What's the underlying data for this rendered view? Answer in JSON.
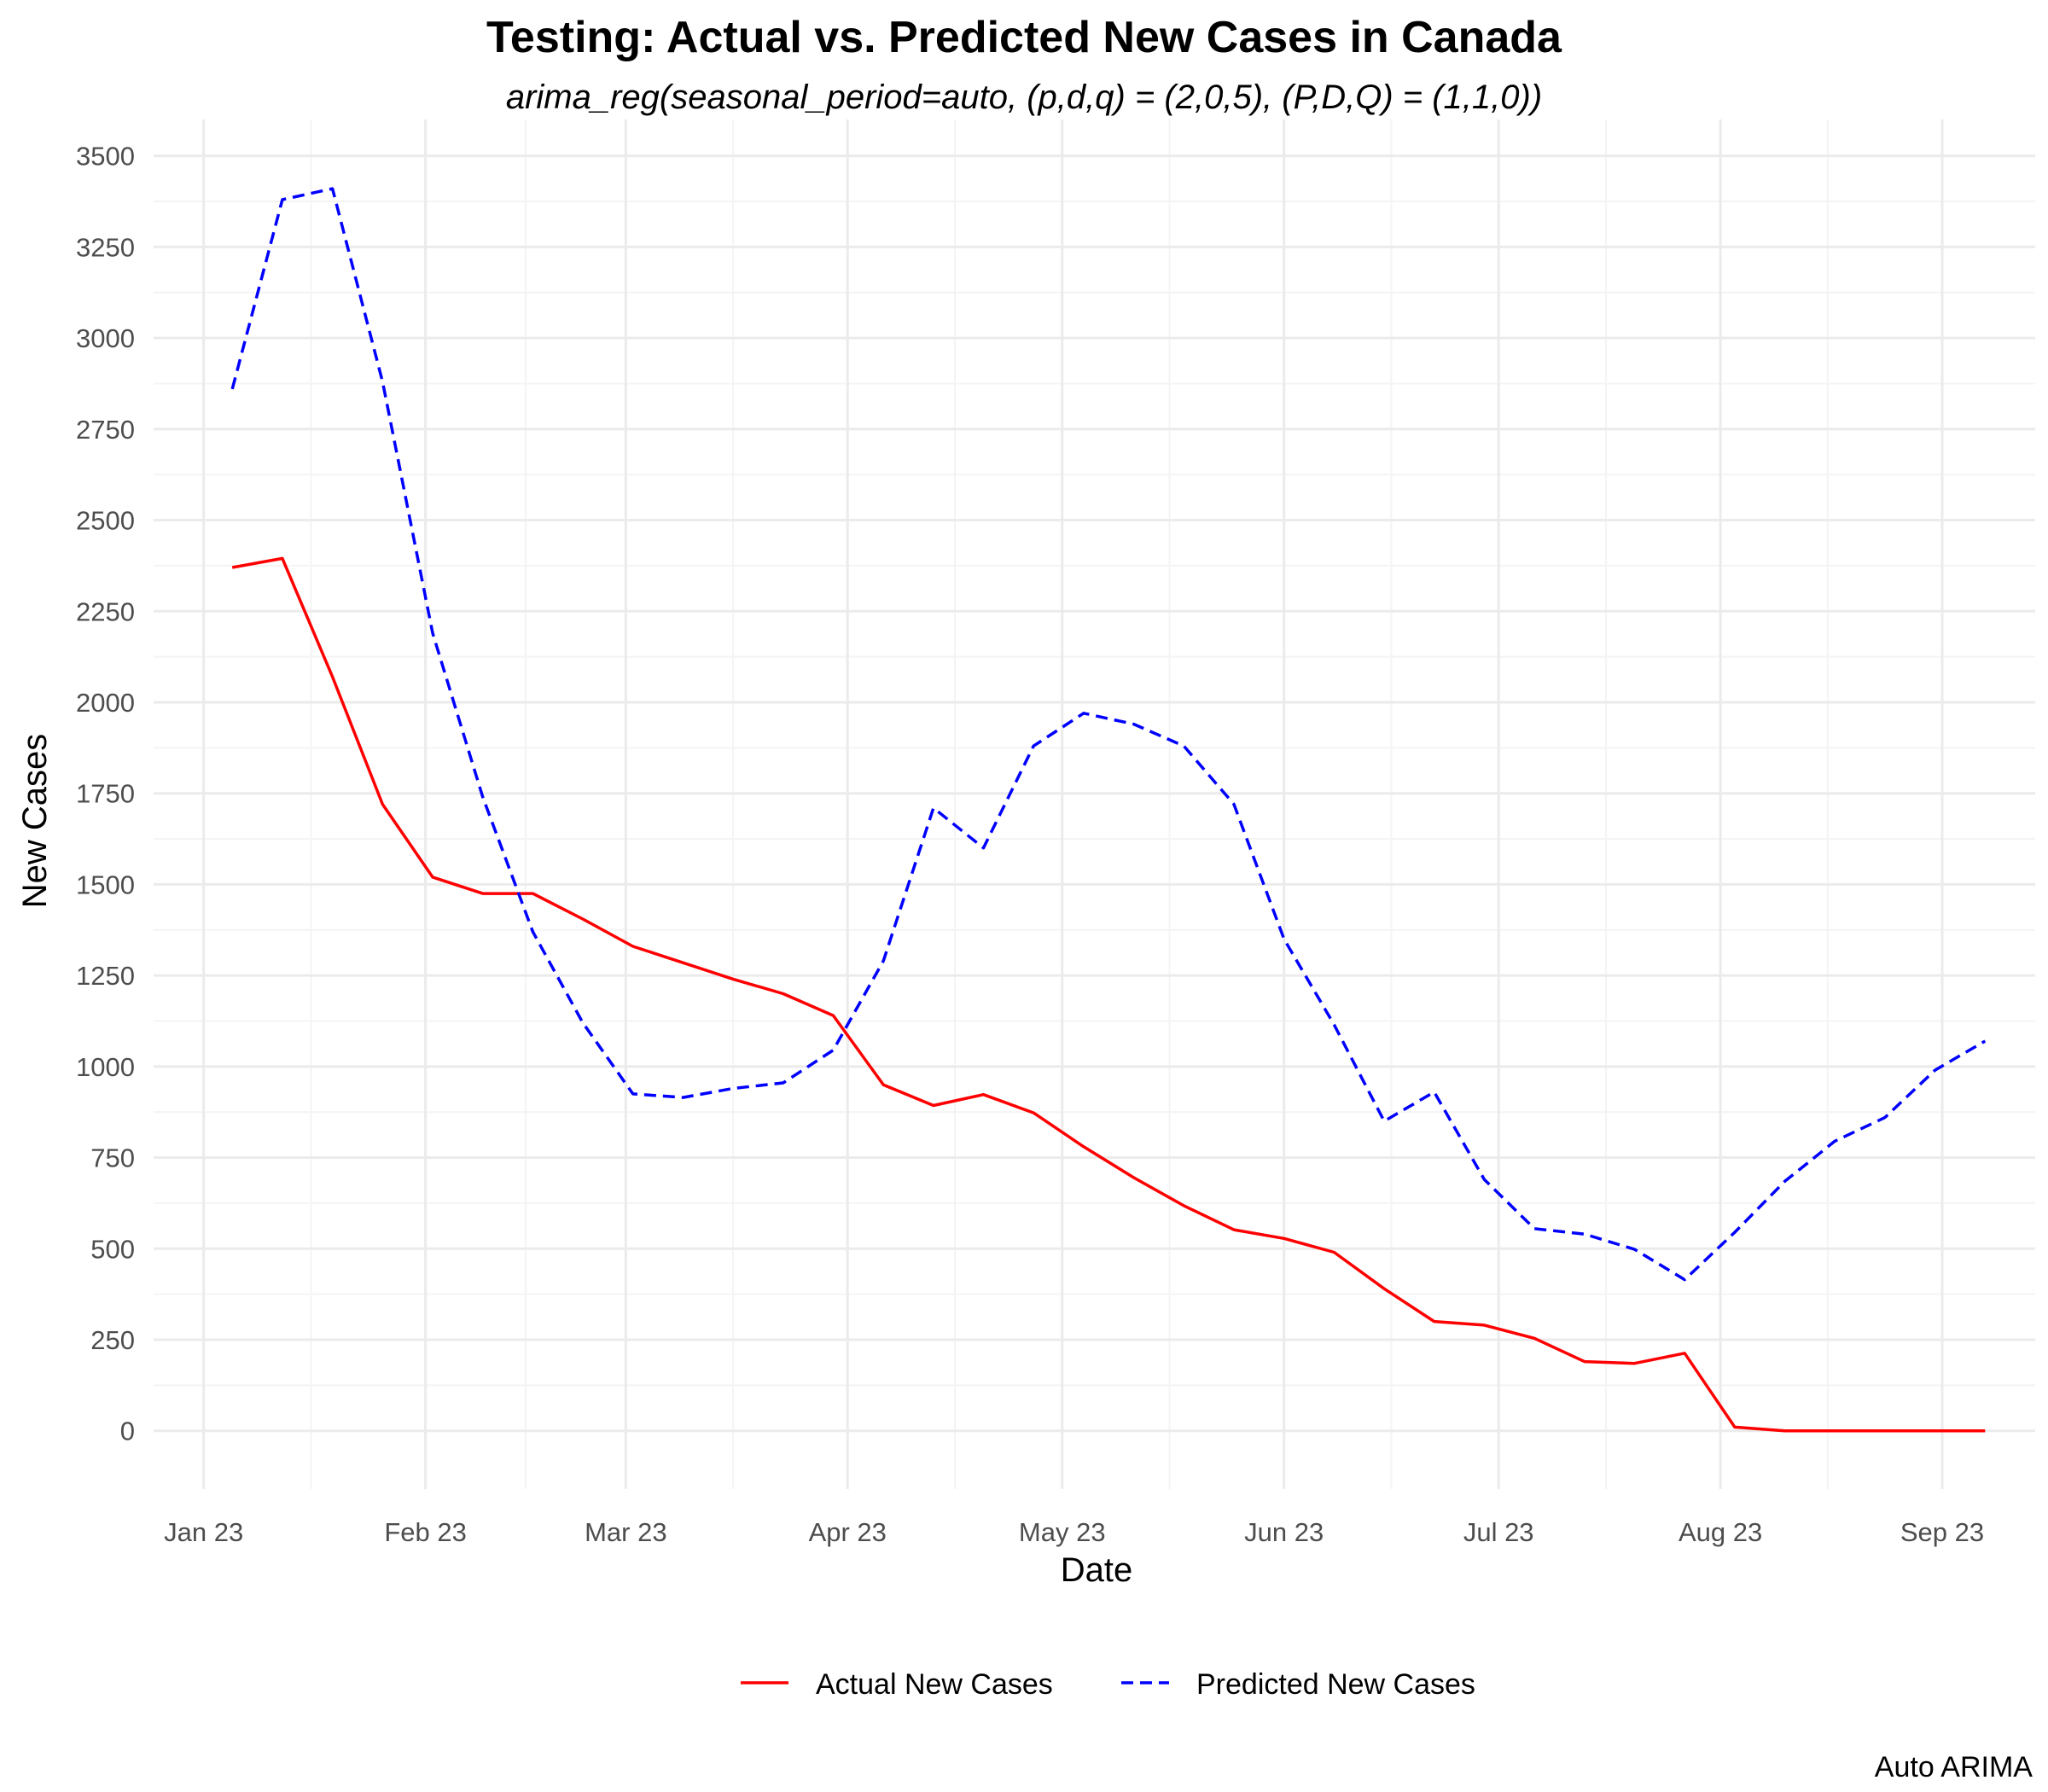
{
  "chart_data": {
    "type": "line",
    "title": "Testing: Actual vs. Predicted New Cases in Canada",
    "subtitle": "arima_reg(seasonal_period=auto, (p,d,q) = (2,0,5), (P,D,Q) = (1,1,0))",
    "caption": "Auto ARIMA",
    "xlabel": "Date",
    "ylabel": "New Cases",
    "x_ticks": [
      "Jan 23",
      "Feb 23",
      "Mar 23",
      "Apr 23",
      "May 23",
      "Jun 23",
      "Jul 23",
      "Aug 23",
      "Sep 23"
    ],
    "x_tick_dates": [
      "2023-01-01",
      "2023-02-01",
      "2023-03-01",
      "2023-04-01",
      "2023-05-01",
      "2023-06-01",
      "2023-07-01",
      "2023-08-01",
      "2023-09-01"
    ],
    "y_ticks": [
      0,
      250,
      500,
      750,
      1000,
      1250,
      1500,
      1750,
      2000,
      2250,
      2500,
      2750,
      3000,
      3250,
      3500
    ],
    "xlim": [
      "2022-12-25",
      "2023-09-14"
    ],
    "ylim": [
      -160,
      3600
    ],
    "grid": true,
    "legend_position": "bottom",
    "x": [
      "2023-01-05",
      "2023-01-12",
      "2023-01-19",
      "2023-01-26",
      "2023-02-02",
      "2023-02-09",
      "2023-02-16",
      "2023-02-23",
      "2023-03-02",
      "2023-03-09",
      "2023-03-16",
      "2023-03-23",
      "2023-03-30",
      "2023-04-06",
      "2023-04-13",
      "2023-04-20",
      "2023-04-27",
      "2023-05-04",
      "2023-05-11",
      "2023-05-18",
      "2023-05-25",
      "2023-06-01",
      "2023-06-08",
      "2023-06-15",
      "2023-06-22",
      "2023-06-29",
      "2023-07-06",
      "2023-07-13",
      "2023-07-20",
      "2023-07-27",
      "2023-08-03",
      "2023-08-10",
      "2023-08-17",
      "2023-08-24",
      "2023-08-31",
      "2023-09-07"
    ],
    "series": [
      {
        "name": "Actual New Cases",
        "color": "#ff0000",
        "dash": "solid",
        "values": [
          2370,
          2395,
          2070,
          1720,
          1520,
          1475,
          1475,
          1405,
          1330,
          1285,
          1240,
          1200,
          1140,
          950,
          893,
          923,
          873,
          780,
          695,
          618,
          552,
          528,
          490,
          390,
          300,
          290,
          254,
          190,
          185,
          213,
          10,
          0,
          0,
          0,
          0,
          0
        ]
      },
      {
        "name": "Predicted New Cases",
        "color": "#0000ff",
        "dash": "dashed",
        "values": [
          2860,
          3380,
          3410,
          2880,
          2190,
          1740,
          1370,
          1120,
          925,
          915,
          940,
          955,
          1045,
          1290,
          1710,
          1600,
          1880,
          1970,
          1940,
          1880,
          1720,
          1350,
          1115,
          850,
          930,
          690,
          555,
          540,
          498,
          415,
          545,
          685,
          795,
          860,
          990,
          1070
        ]
      }
    ]
  }
}
